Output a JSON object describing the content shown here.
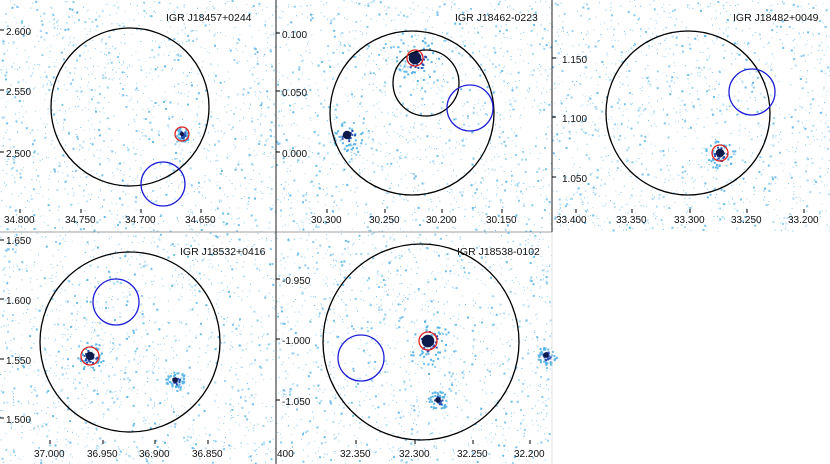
{
  "figure": {
    "description_colors": {
      "background": "#ffffff",
      "noise": "#5ab4e6",
      "source": "#0d1a4a",
      "fov_circle": "#000000",
      "bkg_region": "#1f1fd6",
      "src_region": "#e02020"
    },
    "panels": [
      {
        "id": "p1",
        "title": "IGR J18457+0244",
        "x_ticks": [
          "34.800",
          "34.750",
          "34.700",
          "34.650"
        ],
        "y_ticks": [
          "2.600",
          "2.550",
          "2.500"
        ],
        "sources": [
          {
            "size": "faint"
          }
        ]
      },
      {
        "id": "p2",
        "title": "IGR J18462-0223",
        "x_ticks": [
          "30.300",
          "30.250",
          "30.200",
          "30.150"
        ],
        "y_ticks": [
          "0.100",
          "0.050",
          "0.000"
        ],
        "sources": [
          {
            "size": "bright"
          },
          {
            "size": "medium"
          }
        ]
      },
      {
        "id": "p3",
        "title": "IGR J18482+0049",
        "x_ticks": [
          "33.400",
          "33.350",
          "33.300",
          "33.250",
          "33.200"
        ],
        "y_ticks": [
          "1.150",
          "1.100",
          "1.050"
        ],
        "sources": [
          {
            "size": "medium"
          }
        ]
      },
      {
        "id": "p4",
        "title": "IGR J18532+0416",
        "x_ticks": [
          "37.000",
          "36.950",
          "36.900",
          "36.850"
        ],
        "y_ticks": [
          "1.650",
          "1.600",
          "1.550",
          "1.500"
        ],
        "sources": [
          {
            "size": "medium"
          },
          {
            "size": "small"
          }
        ]
      },
      {
        "id": "p5",
        "title": "IGR J18538-0102",
        "x_ticks": [
          "400",
          "32.350",
          "32.300",
          "32.250",
          "32.200"
        ],
        "y_ticks": [
          "-0.950",
          "-1.000",
          "-1.050"
        ],
        "sources": [
          {
            "size": "bright"
          },
          {
            "size": "small"
          },
          {
            "size": "small"
          }
        ]
      }
    ]
  }
}
